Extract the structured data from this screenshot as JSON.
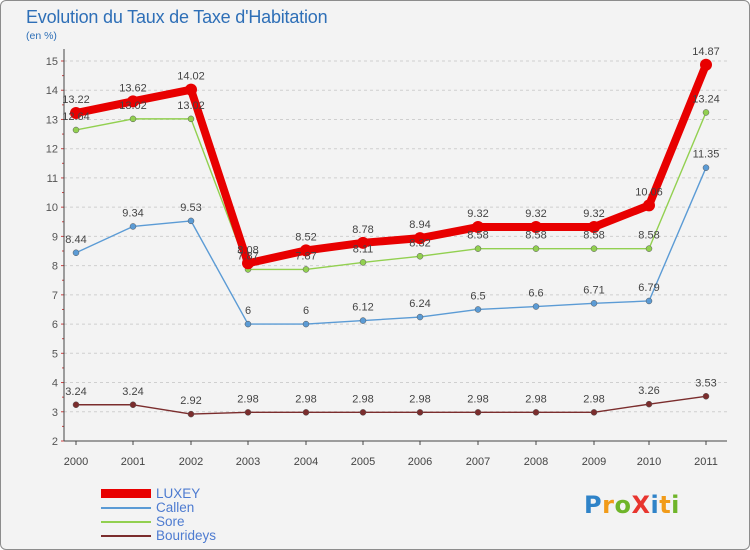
{
  "title": "Evolution du Taux de Taxe d'Habitation",
  "unit": "(en %)",
  "logo": {
    "text": "Proxiti",
    "letters": [
      {
        "ch": "P",
        "color": "#2f83c8"
      },
      {
        "ch": "r",
        "color": "#f19b19"
      },
      {
        "ch": "o",
        "color": "#6fb52a"
      },
      {
        "ch": "X",
        "color": "#e8352f"
      },
      {
        "ch": "i",
        "color": "#2f83c8"
      },
      {
        "ch": "t",
        "color": "#f19b19"
      },
      {
        "ch": "i",
        "color": "#6fb52a"
      }
    ]
  },
  "chart_data": {
    "type": "line",
    "title": "Evolution du Taux de Taxe d'Habitation",
    "ylabel": "(en %)",
    "xlabel": "",
    "x": [
      "2000",
      "2001",
      "2002",
      "2003",
      "2004",
      "2005",
      "2006",
      "2007",
      "2008",
      "2009",
      "2010",
      "2011"
    ],
    "ylim": [
      2,
      15
    ],
    "yticks": [
      "2",
      "3",
      "4",
      "5",
      "6",
      "7",
      "8",
      "9",
      "10",
      "11",
      "12",
      "13",
      "14",
      "15"
    ],
    "grid": "horizontal dashed",
    "legend_position": "bottom-left",
    "series": [
      {
        "name": "LUXEY",
        "color": "#e80000",
        "width": "thick",
        "values": [
          13.22,
          13.62,
          14.02,
          8.08,
          8.52,
          8.78,
          8.94,
          9.32,
          9.32,
          9.32,
          10.06,
          14.87
        ],
        "labels": [
          "13.22",
          "13.62",
          "14.02",
          "8.08",
          "8.52",
          "8.78",
          "8.94",
          "9.32",
          "9.32",
          "9.32",
          "10.06",
          "14.87"
        ]
      },
      {
        "name": "Callen",
        "color": "#5b9bd5",
        "width": "thin",
        "values": [
          8.44,
          9.34,
          9.53,
          6,
          6,
          6.12,
          6.24,
          6.5,
          6.6,
          6.71,
          6.79,
          11.35
        ],
        "labels": [
          "8.44",
          "9.34",
          "9.53",
          "6",
          "6",
          "6.12",
          "6.24",
          "6.5",
          "6.6",
          "6.71",
          "6.79",
          "11.35"
        ]
      },
      {
        "name": "Sore",
        "color": "#92d050",
        "width": "thin",
        "values": [
          12.64,
          13.02,
          13.02,
          7.87,
          7.87,
          8.11,
          8.32,
          8.58,
          8.58,
          8.58,
          8.58,
          13.24
        ],
        "labels": [
          "12.64",
          "13.02",
          "13.02",
          "7.87",
          "7.87",
          "8.11",
          "8.32",
          "8.58",
          "8.58",
          "8.58",
          "8.58",
          "13.24"
        ]
      },
      {
        "name": "Bourideys",
        "color": "#7b2d2d",
        "width": "thin",
        "values": [
          3.24,
          3.24,
          2.92,
          2.98,
          2.98,
          2.98,
          2.98,
          2.98,
          2.98,
          2.98,
          3.26,
          3.53
        ],
        "labels": [
          "3.24",
          "3.24",
          "2.92",
          "2.98",
          "2.98",
          "2.98",
          "2.98",
          "2.98",
          "2.98",
          "2.98",
          "3.26",
          "3.53"
        ]
      }
    ]
  }
}
